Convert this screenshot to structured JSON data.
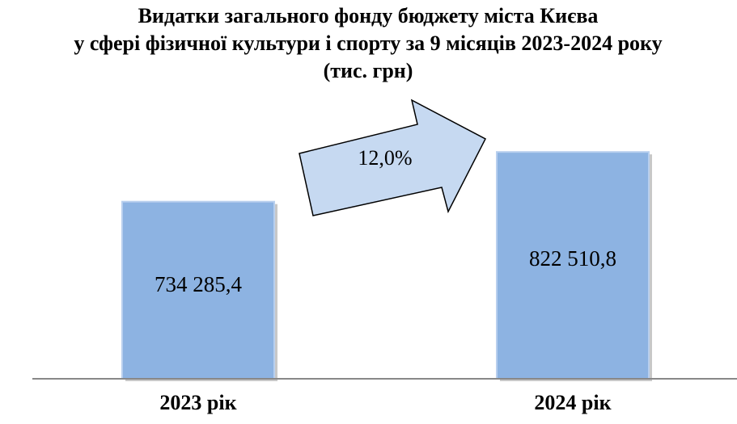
{
  "chart_data": {
    "type": "bar",
    "title": [
      "Видатки загального фонду бюджету міста Києва",
      "у сфері фізичної культури і спорту за 9 місяців 2023-2024 року",
      "(тис. грн)"
    ],
    "categories": [
      "2023 рік",
      "2024 рік"
    ],
    "values": [
      734285.4,
      822510.8
    ],
    "value_labels": [
      "734 285,4",
      "822 510,8"
    ],
    "annotation": "12,0%",
    "color": "#8db3e2",
    "ylim": [
      420000,
      860000
    ]
  }
}
